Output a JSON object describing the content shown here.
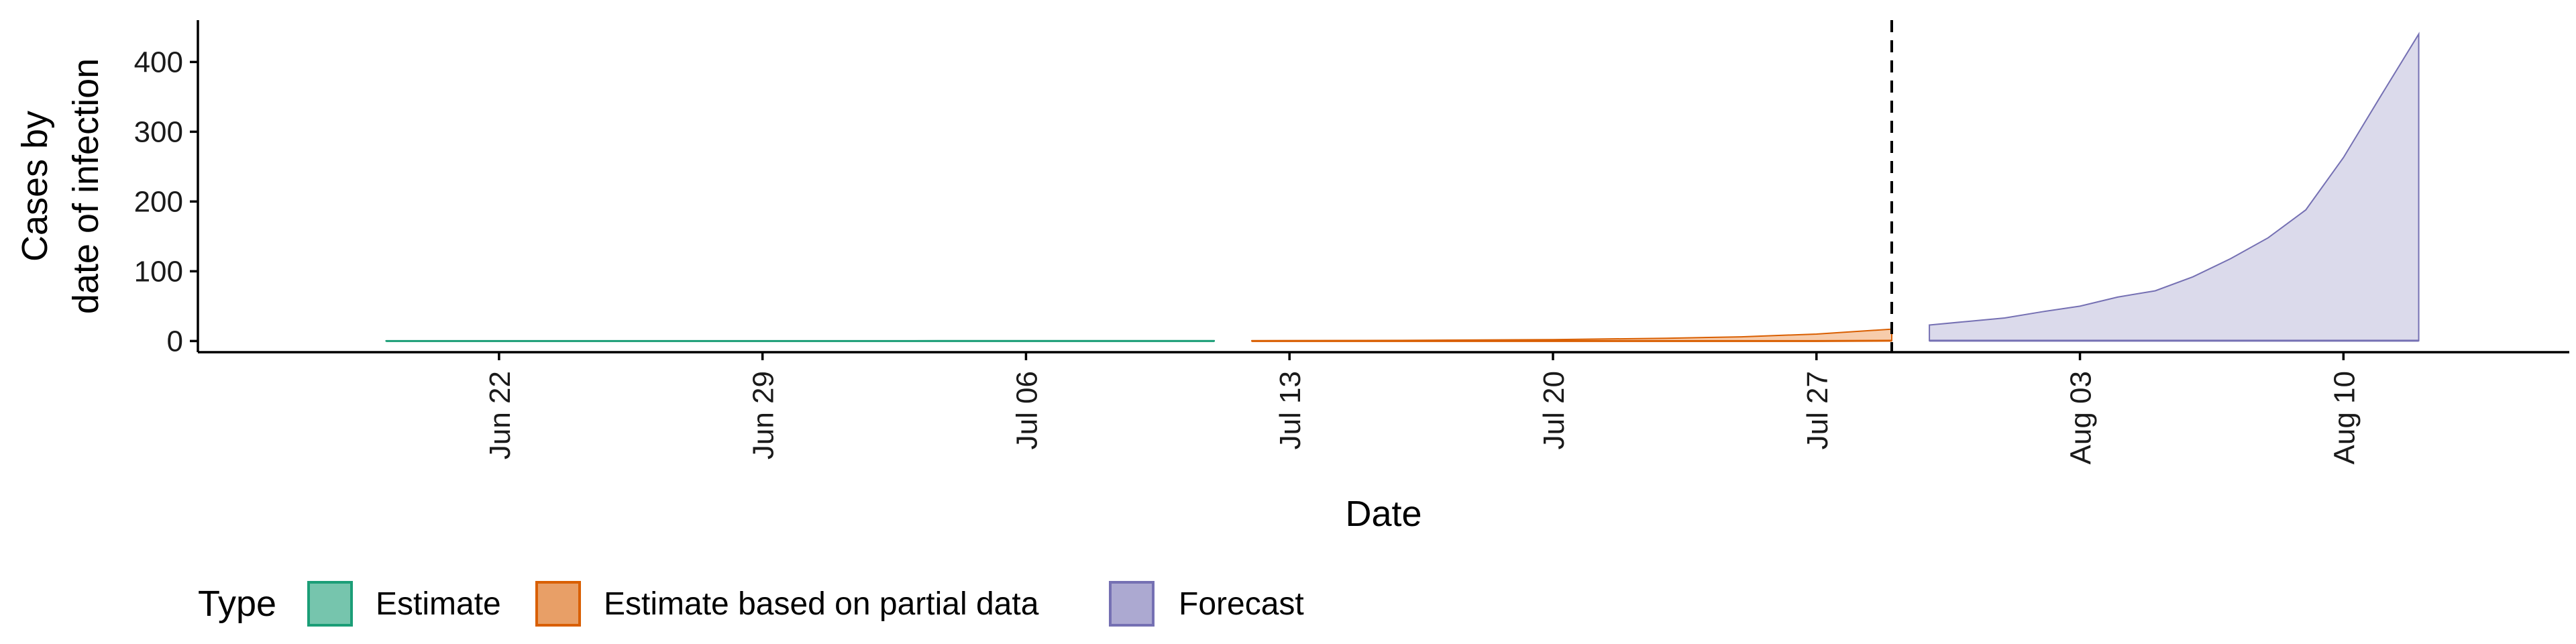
{
  "chart_data": {
    "type": "area",
    "xlabel": "Date",
    "ylabel_lines": [
      "Cases by",
      "date of infection"
    ],
    "x_domain": [
      "2020-06-14",
      "2020-08-16"
    ],
    "y_domain": [
      -16,
      460
    ],
    "yticks": [
      0,
      100,
      200,
      300,
      400
    ],
    "xticks": [
      {
        "date": "2020-06-22",
        "label": "Jun 22"
      },
      {
        "date": "2020-06-29",
        "label": "Jun 29"
      },
      {
        "date": "2020-07-06",
        "label": "Jul 06"
      },
      {
        "date": "2020-07-13",
        "label": "Jul 13"
      },
      {
        "date": "2020-07-20",
        "label": "Jul 20"
      },
      {
        "date": "2020-07-27",
        "label": "Jul 27"
      },
      {
        "date": "2020-08-03",
        "label": "Aug 03"
      },
      {
        "date": "2020-08-10",
        "label": "Aug 10"
      }
    ],
    "vline_date": "2020-07-29",
    "grid": false,
    "legend": {
      "position": "bottom-left",
      "title": "Type",
      "entries": [
        "Estimate",
        "Estimate based on partial data",
        "Forecast"
      ]
    },
    "series": [
      {
        "name": "Estimate",
        "fill": "#1b9e77",
        "fill_light": "#76c4ac",
        "points": [
          {
            "date": "2020-06-19",
            "lower": 0,
            "upper": 0.3
          },
          {
            "date": "2020-06-26",
            "lower": 0,
            "upper": 0.3
          },
          {
            "date": "2020-07-03",
            "lower": 0,
            "upper": 0.4
          },
          {
            "date": "2020-07-11",
            "lower": 0,
            "upper": 0.5
          }
        ]
      },
      {
        "name": "Estimate based on partial data",
        "fill": "#d95f02",
        "fill_light": "#f7c9a6",
        "points": [
          {
            "date": "2020-07-12",
            "lower": 0,
            "upper": 0.5
          },
          {
            "date": "2020-07-16",
            "lower": 0,
            "upper": 1
          },
          {
            "date": "2020-07-20",
            "lower": 0,
            "upper": 2
          },
          {
            "date": "2020-07-23",
            "lower": 0,
            "upper": 4
          },
          {
            "date": "2020-07-25",
            "lower": 0,
            "upper": 6
          },
          {
            "date": "2020-07-27",
            "lower": 0,
            "upper": 10
          },
          {
            "date": "2020-07-29",
            "lower": 0.5,
            "upper": 17
          }
        ]
      },
      {
        "name": "Forecast",
        "fill": "#7570b3",
        "fill_light": "#d9d8ea",
        "points": [
          {
            "date": "2020-07-30",
            "lower": 0.5,
            "upper": 23
          },
          {
            "date": "2020-07-31",
            "lower": 0.5,
            "upper": 28
          },
          {
            "date": "2020-08-01",
            "lower": 0.5,
            "upper": 33
          },
          {
            "date": "2020-08-02",
            "lower": 0.5,
            "upper": 42
          },
          {
            "date": "2020-08-03",
            "lower": 0.5,
            "upper": 50
          },
          {
            "date": "2020-08-04",
            "lower": 0.5,
            "upper": 63
          },
          {
            "date": "2020-08-05",
            "lower": 0.5,
            "upper": 72
          },
          {
            "date": "2020-08-06",
            "lower": 0.5,
            "upper": 92
          },
          {
            "date": "2020-08-07",
            "lower": 0.5,
            "upper": 118
          },
          {
            "date": "2020-08-08",
            "lower": 0.5,
            "upper": 148
          },
          {
            "date": "2020-08-09",
            "lower": 0.5,
            "upper": 188
          },
          {
            "date": "2020-08-10",
            "lower": 0.5,
            "upper": 263
          },
          {
            "date": "2020-08-11",
            "lower": 0.5,
            "upper": 352
          },
          {
            "date": "2020-08-12",
            "lower": 0.5,
            "upper": 440
          }
        ]
      }
    ]
  }
}
